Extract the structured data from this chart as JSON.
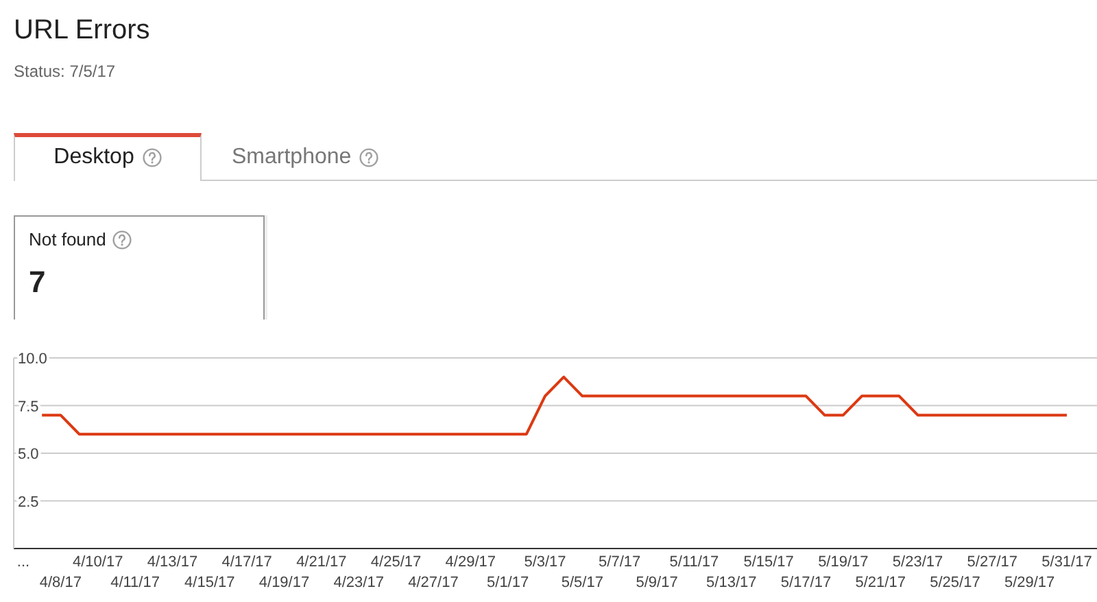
{
  "chart_data": {
    "type": "line",
    "title": "URL Errors",
    "subtitle": "Status: 7/5/17",
    "annotations": [
      "Desktop",
      "Smartphone",
      "Not found",
      "7"
    ],
    "categories": [
      "...",
      null,
      "4/8/17",
      null,
      "4/10/17",
      null,
      "4/11/17",
      null,
      "4/13/17",
      null,
      "4/15/17",
      null,
      "4/17/17",
      null,
      "4/19/17",
      null,
      "4/21/17",
      null,
      "4/23/17",
      null,
      "4/25/17",
      null,
      "4/27/17",
      null,
      "4/29/17",
      null,
      "5/1/17",
      null,
      "5/3/17",
      null,
      "5/5/17",
      null,
      "5/7/17",
      null,
      "5/9/17",
      null,
      "5/11/17",
      null,
      "5/13/17",
      null,
      "5/15/17",
      null,
      "5/17/17",
      null,
      "5/19/17",
      null,
      "5/21/17",
      null,
      "5/23/17",
      null,
      "5/25/17",
      null,
      "5/27/17",
      null,
      "5/29/17",
      null,
      "5/31/17"
    ],
    "series": [
      {
        "color": "#dc3912",
        "values": [
          null,
          7,
          7,
          6,
          6,
          6,
          6,
          6,
          6,
          6,
          6,
          6,
          6,
          6,
          6,
          6,
          6,
          6,
          6,
          6,
          6,
          6,
          6,
          6,
          6,
          6,
          6,
          6,
          8,
          9,
          8,
          8,
          8,
          8,
          8,
          8,
          8,
          8,
          8,
          8,
          8,
          8,
          8,
          7,
          7,
          8,
          8,
          8,
          7,
          7,
          7,
          7,
          7,
          7,
          7,
          7,
          7
        ]
      }
    ],
    "ylim": [
      0,
      10
    ],
    "yticks": [
      2.5,
      {
        "value": 5,
        "label": "5.0"
      },
      7.5,
      {
        "value": 10,
        "label": "10.0"
      }
    ],
    "grid": "y",
    "marker": "none"
  }
}
